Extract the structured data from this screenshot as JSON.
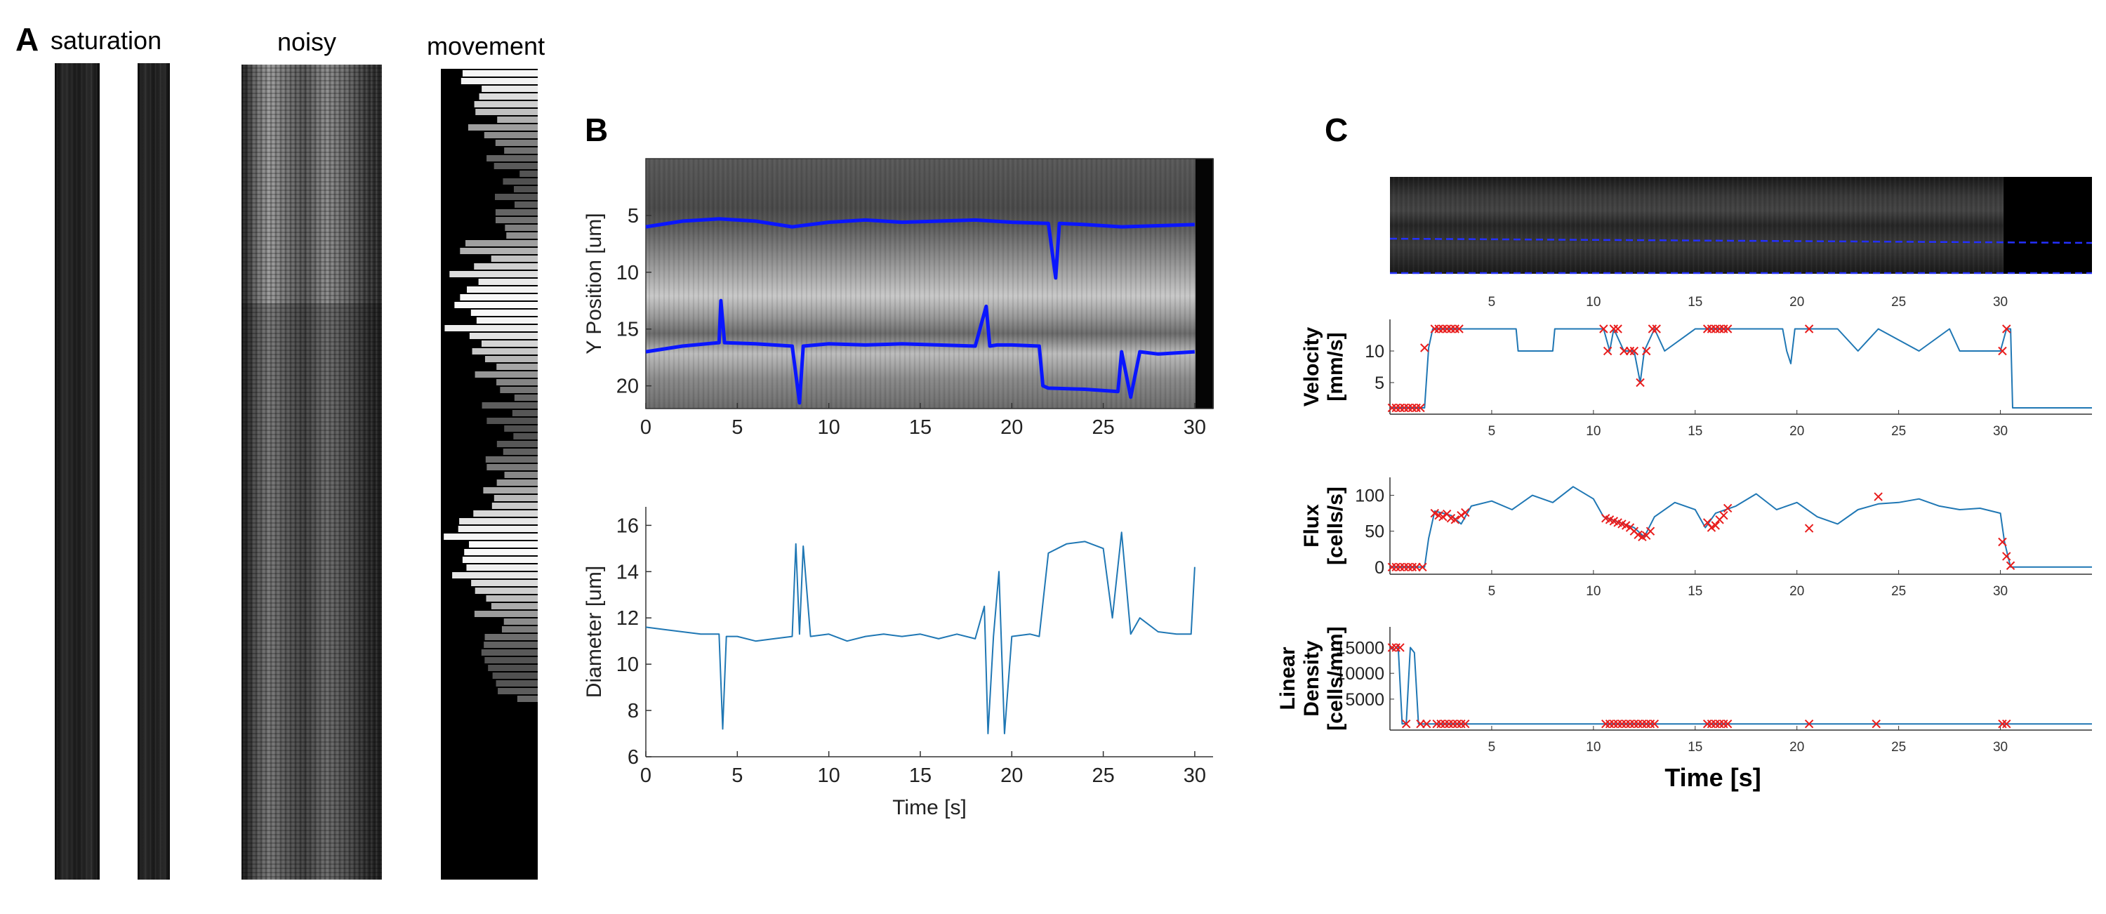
{
  "panels": {
    "a": {
      "letter": "A",
      "titles": {
        "saturation": "saturation",
        "noisy": "noisy",
        "movement": "movement"
      }
    },
    "b": {
      "letter": "B"
    },
    "c": {
      "letter": "C"
    }
  },
  "colors": {
    "edge_line": "#0a16ff",
    "series_line": "#1f77b4",
    "outlier": "#e81c1c",
    "dark": "#000000"
  },
  "chart_data": [
    {
      "id": "B-top",
      "type": "line",
      "background": "kymograph image",
      "xlabel": "",
      "ylabel": "Y Position [um]",
      "xlim": [
        0,
        31
      ],
      "ylim": [
        22,
        0
      ],
      "xticks": [
        0,
        5,
        10,
        15,
        20,
        25,
        30
      ],
      "yticks": [
        5,
        10,
        15,
        20
      ],
      "series": [
        {
          "name": "upper edge",
          "x": [
            0,
            2,
            4,
            6,
            8,
            10,
            12,
            14,
            16,
            18,
            20,
            22,
            22.4,
            22.6,
            24,
            26,
            28,
            30
          ],
          "values": [
            6,
            5.5,
            5.3,
            5.5,
            6,
            5.6,
            5.4,
            5.6,
            5.5,
            5.4,
            5.6,
            5.7,
            10.5,
            5.7,
            5.8,
            6,
            5.9,
            5.8
          ]
        },
        {
          "name": "lower edge",
          "x": [
            0,
            2,
            4,
            4.1,
            4.3,
            6,
            8,
            8.4,
            8.6,
            10,
            12,
            14,
            16,
            18,
            18.6,
            18.8,
            19.2,
            20,
            21.5,
            21.7,
            22,
            24,
            25.8,
            26,
            26.5,
            27,
            28,
            30
          ],
          "values": [
            17,
            16.5,
            16.2,
            12.5,
            16.2,
            16.3,
            16.5,
            21.5,
            16.5,
            16.3,
            16.4,
            16.3,
            16.4,
            16.5,
            13,
            16.5,
            16.4,
            16.4,
            16.5,
            20,
            20.2,
            20.3,
            20.5,
            17,
            21,
            17,
            17.2,
            17
          ]
        }
      ]
    },
    {
      "id": "B-bottom",
      "type": "line",
      "xlabel": "Time [s]",
      "ylabel": "Diameter [um]",
      "xlim": [
        0,
        31
      ],
      "ylim": [
        6,
        16.8
      ],
      "xticks": [
        0,
        5,
        10,
        15,
        20,
        25,
        30
      ],
      "yticks": [
        6,
        8,
        10,
        12,
        14,
        16
      ],
      "series": [
        {
          "name": "diameter",
          "x": [
            0,
            1,
            2,
            3,
            4,
            4.2,
            4.4,
            5,
            6,
            7,
            8,
            8.2,
            8.4,
            8.6,
            9,
            10,
            11,
            12,
            13,
            14,
            15,
            16,
            17,
            18,
            18.5,
            18.7,
            19,
            19.3,
            19.6,
            20,
            21,
            21.5,
            22,
            23,
            24,
            25,
            25.5,
            26,
            26.5,
            27,
            28,
            29,
            29.8,
            30
          ],
          "values": [
            11.6,
            11.5,
            11.4,
            11.3,
            11.3,
            7.2,
            11.2,
            11.2,
            11.0,
            11.1,
            11.2,
            15.2,
            11.3,
            15.1,
            11.2,
            11.3,
            11.0,
            11.2,
            11.3,
            11.2,
            11.3,
            11.1,
            11.3,
            11.1,
            12.5,
            7.0,
            11.2,
            14.0,
            7.0,
            11.2,
            11.3,
            11.2,
            14.8,
            15.2,
            15.3,
            15.0,
            12.0,
            15.7,
            11.3,
            12.0,
            11.4,
            11.3,
            11.3,
            14.2
          ]
        }
      ]
    },
    {
      "id": "C-velocity",
      "type": "line",
      "xlabel": "",
      "ylabel": "Velocity [mm/s]",
      "xlim": [
        0,
        34.5
      ],
      "ylim": [
        0,
        15
      ],
      "xticks": [
        5,
        10,
        15,
        20,
        25,
        30
      ],
      "yticks": [
        5,
        10
      ],
      "series": [
        {
          "name": "velocity",
          "x": [
            0,
            1.7,
            1.9,
            2.1,
            3,
            5,
            6.2,
            6.3,
            8,
            8.1,
            10.5,
            10.8,
            11,
            11.5,
            12,
            12.3,
            12.5,
            13,
            13.5,
            15,
            17,
            19.3,
            19.5,
            19.7,
            19.9,
            22,
            23,
            24,
            26,
            27.5,
            28,
            30,
            30.3,
            30.5,
            30.6,
            31,
            34.5
          ],
          "values": [
            1,
            1,
            10.5,
            13.5,
            13.5,
            13.5,
            13.5,
            10,
            10,
            13.5,
            13.5,
            10,
            13.5,
            10,
            10,
            5,
            10,
            13.5,
            10,
            13.5,
            13.5,
            13.5,
            10,
            8,
            13.5,
            13.5,
            10,
            13.5,
            10,
            13.5,
            10,
            10,
            13.5,
            13.5,
            1,
            1,
            1
          ]
        },
        {
          "name": "outliers",
          "style": "markers",
          "x": [
            0.1,
            0.3,
            0.5,
            0.7,
            0.9,
            1.1,
            1.3,
            1.5,
            1.7,
            2.2,
            2.4,
            2.6,
            2.8,
            3.0,
            3.2,
            3.4,
            10.5,
            10.7,
            11.0,
            11.2,
            11.5,
            11.8,
            12.0,
            12.3,
            12.6,
            12.9,
            13.1,
            15.6,
            15.8,
            16.0,
            16.2,
            16.4,
            16.6,
            20.6,
            30.1,
            30.3
          ],
          "values": [
            1,
            1,
            1,
            1,
            1,
            1,
            1,
            1,
            10.5,
            13.5,
            13.5,
            13.5,
            13.5,
            13.5,
            13.5,
            13.5,
            13.5,
            10,
            13.5,
            13.5,
            10,
            10,
            10,
            5,
            10,
            13.5,
            13.5,
            13.5,
            13.5,
            13.5,
            13.5,
            13.5,
            13.5,
            13.5,
            10,
            13.5
          ]
        }
      ]
    },
    {
      "id": "C-flux",
      "type": "line",
      "xlabel": "",
      "ylabel": "Flux [cells/s]",
      "xlim": [
        0,
        34.5
      ],
      "ylim": [
        -10,
        125
      ],
      "xticks": [
        5,
        10,
        15,
        20,
        25,
        30
      ],
      "yticks": [
        0,
        50,
        100
      ],
      "series": [
        {
          "name": "flux",
          "x": [
            0,
            1.7,
            1.9,
            2.2,
            3,
            3.5,
            4,
            5,
            6,
            7,
            8,
            9,
            10,
            10.5,
            11,
            12,
            12.5,
            13,
            14,
            15,
            15.5,
            16,
            17,
            18,
            19,
            20,
            21,
            22,
            23,
            24,
            25,
            26,
            27,
            28,
            29,
            30,
            30.2,
            30.5,
            31,
            34.5
          ],
          "values": [
            0,
            0,
            40,
            78,
            72,
            60,
            85,
            92,
            80,
            100,
            90,
            112,
            95,
            70,
            65,
            55,
            42,
            70,
            90,
            80,
            55,
            75,
            85,
            102,
            80,
            90,
            70,
            60,
            80,
            88,
            90,
            95,
            85,
            80,
            82,
            75,
            35,
            0,
            0,
            0
          ]
        },
        {
          "name": "outliers",
          "style": "markers",
          "x": [
            0.1,
            0.3,
            0.5,
            0.7,
            0.9,
            1.1,
            1.3,
            1.6,
            2.2,
            2.4,
            2.6,
            2.8,
            3.0,
            3.2,
            3.5,
            3.7,
            10.6,
            10.8,
            11.0,
            11.2,
            11.4,
            11.6,
            11.8,
            12.0,
            12.2,
            12.4,
            12.6,
            12.8,
            15.6,
            15.8,
            16.0,
            16.2,
            16.4,
            16.6,
            20.6,
            24.0,
            30.1,
            30.3,
            30.5
          ],
          "values": [
            0,
            0,
            0,
            0,
            0,
            0,
            0,
            0,
            75,
            72,
            70,
            74,
            68,
            66,
            72,
            76,
            68,
            66,
            64,
            62,
            60,
            58,
            55,
            50,
            45,
            42,
            44,
            50,
            62,
            55,
            58,
            66,
            72,
            82,
            54,
            98,
            35,
            15,
            2
          ]
        }
      ]
    },
    {
      "id": "C-density",
      "type": "line",
      "xlabel": "Time [s]",
      "ylabel": "Linear Density [cells/mm]",
      "xlim": [
        0,
        34.5
      ],
      "ylim": [
        -1000,
        19000
      ],
      "xticks": [
        5,
        10,
        15,
        20,
        25,
        30
      ],
      "yticks": [
        5000,
        10000,
        15000
      ],
      "series": [
        {
          "name": "density",
          "x": [
            0,
            0.2,
            0.4,
            0.6,
            0.8,
            1.0,
            1.2,
            1.4,
            1.6,
            1.8,
            2.0,
            34.5
          ],
          "values": [
            15000,
            14500,
            15500,
            200,
            300,
            15000,
            14000,
            200,
            200,
            200,
            200,
            200
          ]
        },
        {
          "name": "outliers",
          "style": "markers",
          "x": [
            0.1,
            0.3,
            0.5,
            0.8,
            1.5,
            1.8,
            2.3,
            2.5,
            2.7,
            2.9,
            3.1,
            3.3,
            3.5,
            3.7,
            10.6,
            10.8,
            11.0,
            11.2,
            11.4,
            11.6,
            11.8,
            12.0,
            12.2,
            12.4,
            12.6,
            12.8,
            13.0,
            15.6,
            15.8,
            16.0,
            16.2,
            16.4,
            16.6,
            20.6,
            23.9,
            30.1,
            30.3
          ],
          "values": [
            15000,
            15000,
            15000,
            200,
            200,
            200,
            200,
            200,
            200,
            200,
            200,
            200,
            200,
            200,
            200,
            200,
            200,
            200,
            200,
            200,
            200,
            200,
            200,
            200,
            200,
            200,
            200,
            200,
            200,
            200,
            200,
            200,
            200,
            200,
            200,
            200,
            200
          ]
        }
      ]
    }
  ]
}
